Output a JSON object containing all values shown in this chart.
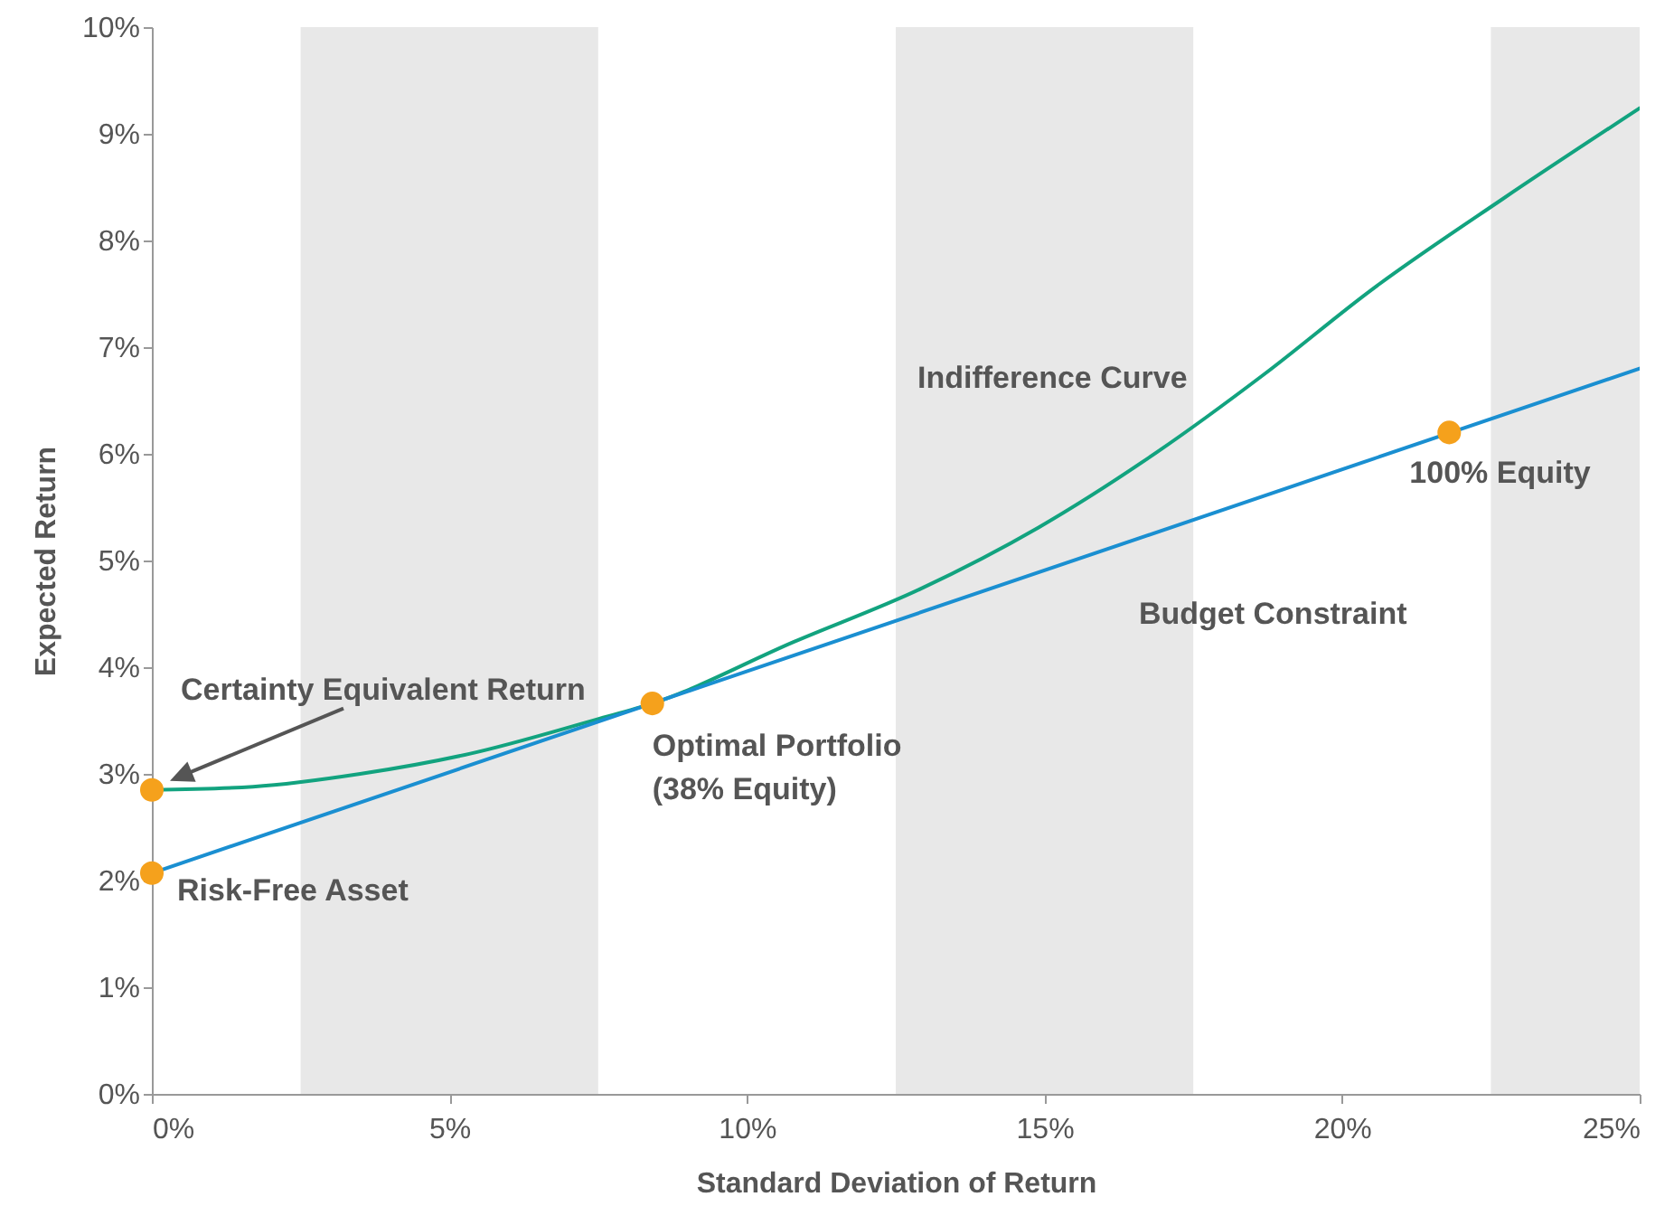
{
  "chart_data": {
    "type": "line",
    "xlabel": "Standard Deviation of Return",
    "ylabel": "Expected Return",
    "xlim": [
      0,
      25
    ],
    "ylim": [
      0,
      10
    ],
    "xticks": [
      {
        "value": 0,
        "label": "0%"
      },
      {
        "value": 5,
        "label": "5%"
      },
      {
        "value": 10,
        "label": "10%"
      },
      {
        "value": 15,
        "label": "15%"
      },
      {
        "value": 20,
        "label": "20%"
      },
      {
        "value": 25,
        "label": "25%"
      }
    ],
    "yticks": [
      {
        "value": 0,
        "label": "0%"
      },
      {
        "value": 1,
        "label": "1%"
      },
      {
        "value": 2,
        "label": "2%"
      },
      {
        "value": 3,
        "label": "3%"
      },
      {
        "value": 4,
        "label": "4%"
      },
      {
        "value": 5,
        "label": "5%"
      },
      {
        "value": 6,
        "label": "6%"
      },
      {
        "value": 7,
        "label": "7%"
      },
      {
        "value": 8,
        "label": "8%"
      },
      {
        "value": 9,
        "label": "9%"
      },
      {
        "value": 10,
        "label": "10%"
      }
    ],
    "series": [
      {
        "name": "Indifference Curve",
        "color": "#12a37f",
        "x": [
          0,
          1.7,
          3.5,
          5.35,
          7.47,
          8.41,
          10.8,
          12.9,
          14.9,
          16.9,
          18.7,
          20.5,
          22.7,
          25
        ],
        "values": [
          2.85,
          2.88,
          3.0,
          3.19,
          3.51,
          3.66,
          4.24,
          4.73,
          5.31,
          6.02,
          6.75,
          7.54,
          8.39,
          9.24
        ]
      },
      {
        "name": "Budget Constraint",
        "color": "#1a8fd1",
        "x": [
          0,
          25
        ],
        "values": [
          2.07,
          6.8
        ]
      },
      {
        "type": "scatter",
        "marker": "circle",
        "color": "#f5a11c",
        "x": [
          0,
          0,
          8.41,
          21.8
        ],
        "values": [
          2.85,
          2.07,
          3.66,
          6.2
        ]
      }
    ],
    "bands": [
      {
        "axis": "x",
        "from": 2.5,
        "to": 7.5,
        "color": "#e8e8e8"
      },
      {
        "axis": "x",
        "from": 12.5,
        "to": 17.5,
        "color": "#e8e8e8"
      },
      {
        "axis": "x",
        "from": 22.5,
        "to": 25,
        "color": "#e8e8e8"
      }
    ],
    "annotations": [
      {
        "text": "Certainty Equivalent Return",
        "x": 0,
        "y": 2.85
      },
      {
        "text": "Risk-Free Asset",
        "x": 0,
        "y": 2.07
      },
      {
        "text": "Optimal Portfolio\n(38% Equity)",
        "x": 8.41,
        "y": 3.66
      },
      {
        "text": "100% Equity",
        "x": 21.8,
        "y": 6.2
      }
    ],
    "marker": "none",
    "grid": false
  }
}
